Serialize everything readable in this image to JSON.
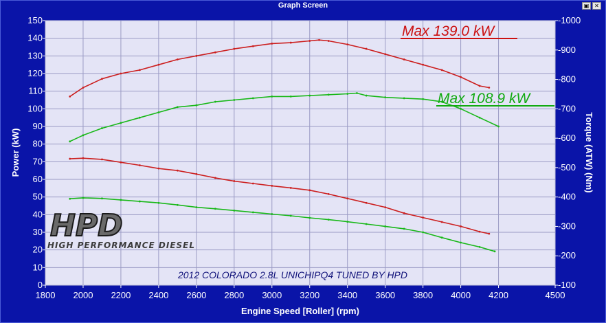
{
  "window": {
    "title": "Graph Screen"
  },
  "logo": {
    "mark": "HPD",
    "tagline": "HIGH PERFORMANCE DIESEL"
  },
  "chart_data": {
    "type": "line",
    "caption": "2012 COLORADO 2.8L UNICHIPQ4 TUNED BY HPD",
    "xlabel": "Engine Speed [Roller] (rpm)",
    "ylabel_left": "Power (kW)",
    "ylabel_right": "Torque (ATW) (Nm)",
    "xlim": [
      1800,
      4500
    ],
    "ylim_left": [
      0,
      150
    ],
    "ylim_right": [
      100,
      1000
    ],
    "x_ticks": [
      1800,
      2000,
      2200,
      2400,
      2600,
      2800,
      3000,
      3200,
      3400,
      3600,
      3800,
      4000,
      4200,
      4500
    ],
    "y_left_ticks": [
      0,
      10,
      20,
      30,
      40,
      50,
      60,
      70,
      80,
      90,
      100,
      110,
      120,
      130,
      140,
      150
    ],
    "y_right_ticks": [
      100,
      200,
      300,
      400,
      500,
      600,
      700,
      800,
      900,
      1000
    ],
    "grid": true,
    "annotations": [
      {
        "text": "Max 139.0 kW",
        "color": "#cc1111"
      },
      {
        "text": "Max 108.9 kW",
        "color": "#11aa11"
      }
    ],
    "series": [
      {
        "kind": "power",
        "axis": "left",
        "color": "#cc1f1f",
        "x": [
          1930,
          2000,
          2100,
          2200,
          2300,
          2400,
          2500,
          2600,
          2700,
          2800,
          2900,
          3000,
          3100,
          3200,
          3250,
          3300,
          3400,
          3500,
          3600,
          3700,
          3800,
          3900,
          4000,
          4100,
          4150
        ],
        "y": [
          107,
          112,
          117,
          120,
          122,
          125,
          128,
          130,
          132,
          134,
          135.5,
          137,
          137.5,
          138.5,
          139,
          138.5,
          136.5,
          134,
          131,
          128,
          125,
          122,
          118,
          113,
          112
        ]
      },
      {
        "kind": "power",
        "axis": "left",
        "color": "#18b818",
        "x": [
          1930,
          2000,
          2100,
          2200,
          2300,
          2400,
          2500,
          2600,
          2700,
          2800,
          2900,
          3000,
          3100,
          3200,
          3300,
          3400,
          3450,
          3500,
          3600,
          3700,
          3800,
          3900,
          4000,
          4100,
          4200
        ],
        "y": [
          81.5,
          85,
          89,
          92,
          95,
          98,
          101,
          102,
          104,
          105,
          106,
          107,
          107,
          107.5,
          108,
          108.5,
          108.9,
          107.5,
          106.5,
          106,
          105.5,
          104,
          100,
          95,
          90
        ]
      },
      {
        "kind": "torque",
        "axis": "right",
        "color": "#cc1f1f",
        "x": [
          1930,
          2000,
          2100,
          2200,
          2300,
          2400,
          2500,
          2600,
          2700,
          2800,
          2900,
          3000,
          3100,
          3200,
          3300,
          3400,
          3500,
          3600,
          3700,
          3800,
          3900,
          4000,
          4100,
          4150
        ],
        "y": [
          530,
          532,
          528,
          518,
          508,
          497,
          490,
          478,
          465,
          454,
          446,
          438,
          431,
          423,
          410,
          395,
          380,
          365,
          345,
          330,
          315,
          300,
          282,
          275
        ]
      },
      {
        "kind": "torque",
        "axis": "right",
        "color": "#18b818",
        "x": [
          1930,
          2000,
          2100,
          2200,
          2300,
          2400,
          2500,
          2600,
          2700,
          2800,
          2900,
          3000,
          3100,
          3200,
          3300,
          3400,
          3500,
          3600,
          3700,
          3800,
          3900,
          4000,
          4100,
          4180
        ],
        "y": [
          394,
          397,
          395,
          390,
          385,
          380,
          373,
          365,
          360,
          354,
          348,
          342,
          336,
          329,
          323,
          316,
          308,
          300,
          292,
          280,
          262,
          245,
          230,
          215
        ]
      }
    ]
  }
}
